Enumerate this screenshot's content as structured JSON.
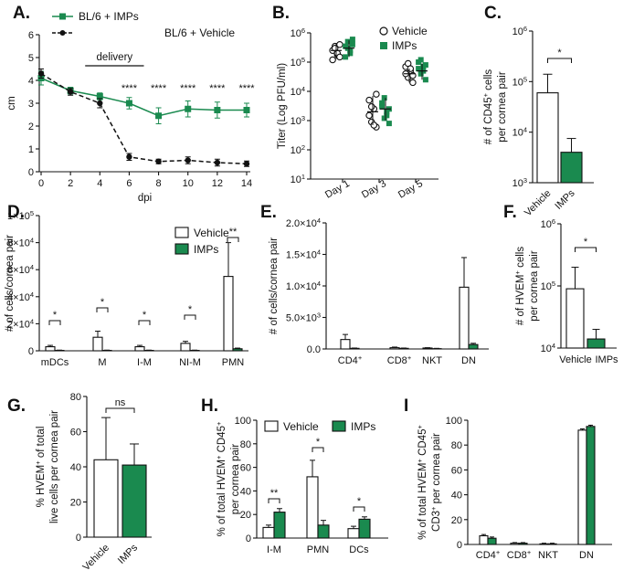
{
  "colors": {
    "green": "#1a8a4f",
    "white": "#ffffff",
    "black": "#111111"
  },
  "chart_data": [
    {
      "id": "A",
      "label": "A.",
      "type": "line",
      "xlabel": "dpi",
      "ylabel": "cm",
      "xlim": [
        0,
        14
      ],
      "ylim": [
        0,
        6
      ],
      "xticks": [
        0,
        2,
        4,
        6,
        8,
        10,
        12,
        14
      ],
      "yticks": [
        0,
        1,
        2,
        3,
        4,
        5,
        6
      ],
      "annotation": "delivery",
      "delivery_range": [
        3,
        7
      ],
      "series": [
        {
          "name": "BL/6 + IMPs",
          "x": [
            0,
            2,
            4,
            6,
            8,
            10,
            12,
            14
          ],
          "y": [
            4.1,
            3.55,
            3.3,
            3.0,
            2.45,
            2.75,
            2.7,
            2.7
          ],
          "err": [
            0.3,
            0.15,
            0.15,
            0.25,
            0.35,
            0.35,
            0.35,
            0.3
          ]
        },
        {
          "name": "BL/6 + Vehicle",
          "x": [
            0,
            2,
            4,
            6,
            8,
            10,
            12,
            14
          ],
          "y": [
            4.3,
            3.5,
            3.0,
            0.65,
            0.45,
            0.5,
            0.4,
            0.35
          ],
          "err": [
            0.2,
            0.15,
            0.2,
            0.15,
            0.1,
            0.15,
            0.15,
            0.12
          ]
        }
      ],
      "significance": [
        {
          "x": 6,
          "text": "****"
        },
        {
          "x": 8,
          "text": "****"
        },
        {
          "x": 10,
          "text": "****"
        },
        {
          "x": 12,
          "text": "****"
        },
        {
          "x": 14,
          "text": "****"
        }
      ]
    },
    {
      "id": "B",
      "label": "B.",
      "type": "scatter",
      "ylabel": "Titer (Log PFU/ml)",
      "yscale": "log",
      "ylim": [
        10,
        1000000
      ],
      "yticks": [
        "10^1",
        "10^2",
        "10^3",
        "10^4",
        "10^5",
        "10^6"
      ],
      "categories": [
        "Day 1",
        "Day 3",
        "Day 5"
      ],
      "series": [
        {
          "name": "Vehicle",
          "mean": [
            250000,
            2000,
            40000
          ],
          "err_lo": [
            130000,
            700,
            20000
          ],
          "err_hi": [
            450000,
            7000,
            60000
          ],
          "points": [
            [
              250000,
              350000,
              180000,
              400000,
              120000,
              300000,
              200000,
              150000
            ],
            [
              5000,
              900,
              2500,
              600,
              1500,
              3000,
              700,
              8000
            ],
            [
              70000,
              30000,
              50000,
              20000,
              40000,
              90000,
              60000,
              35000
            ]
          ]
        },
        {
          "name": "IMPs",
          "mean": [
            300000,
            2500,
            50000
          ],
          "err_lo": [
            150000,
            1000,
            25000
          ],
          "err_hi": [
            550000,
            6000,
            90000
          ],
          "points": [
            [
              350000,
              500000,
              200000,
              600000,
              150000,
              300000,
              250000,
              400000
            ],
            [
              4000,
              1200,
              2000,
              800,
              3000,
              6000,
              1500,
              2500
            ],
            [
              100000,
              40000,
              70000,
              25000,
              60000,
              120000,
              50000,
              80000
            ]
          ]
        }
      ]
    },
    {
      "id": "C",
      "label": "C.",
      "type": "bar",
      "yscale": "log",
      "ylim": [
        1000,
        1000000
      ],
      "ylabel": "# of CD45+ cells per cornea pair",
      "yticks": [
        "10^3",
        "10^4",
        "10^5",
        "10^6"
      ],
      "categories": [
        "Vehicle",
        "IMPs"
      ],
      "values": [
        60000,
        4000
      ],
      "err": [
        140000,
        7500
      ],
      "significance": "*"
    },
    {
      "id": "D",
      "label": "D.",
      "type": "bar",
      "ylabel": "# of cells/cornea pair",
      "ylim": [
        0,
        100000
      ],
      "yticks": [
        "0",
        "2×10^4",
        "4×10^4",
        "6×10^4",
        "8×10^4",
        "1×10^5"
      ],
      "categories": [
        "mDCs",
        "M",
        "I-M",
        "NI-M",
        "PMN"
      ],
      "series": [
        {
          "name": "Vehicle",
          "values": [
            3000,
            10000,
            3000,
            5500,
            55000
          ],
          "err": [
            4000,
            14500,
            4000,
            7000,
            80000
          ]
        },
        {
          "name": "IMPs",
          "values": [
            300,
            300,
            300,
            300,
            1500
          ],
          "err": [
            500,
            500,
            500,
            500,
            2000
          ]
        }
      ],
      "significance": [
        "*",
        "*",
        "*",
        "*",
        "**"
      ]
    },
    {
      "id": "E",
      "label": "E.",
      "type": "bar",
      "ylabel": "# of cells/cornea pair",
      "ylim": [
        0,
        20000
      ],
      "yticks": [
        "0.0",
        "5.0×10^3",
        "1.0×10^4",
        "1.5×10^4",
        "2.0×10^4"
      ],
      "categories": [
        "CD4+",
        "CD8+",
        "NKT",
        "DN"
      ],
      "series": [
        {
          "name": "Vehicle",
          "values": [
            1500,
            200,
            150,
            9800
          ],
          "err": [
            2300,
            300,
            200,
            14500
          ]
        },
        {
          "name": "IMPs",
          "values": [
            100,
            100,
            50,
            700
          ],
          "err": [
            150,
            150,
            100,
            900
          ]
        }
      ]
    },
    {
      "id": "F",
      "label": "F.",
      "type": "bar",
      "yscale": "log",
      "ylim": [
        10000,
        1000000
      ],
      "ylabel": "# of HVEM+ cells per cornea pair",
      "yticks": [
        "10^4",
        "10^5",
        "10^6"
      ],
      "categories": [
        "Vehicle",
        "IMPs"
      ],
      "values": [
        90000,
        14000
      ],
      "err": [
        200000,
        20000
      ],
      "significance": "*"
    },
    {
      "id": "G",
      "label": "G.",
      "type": "bar",
      "ylim": [
        0,
        80
      ],
      "ylabel": "% HVEM+ of total live cells per cornea pair",
      "yticks": [
        0,
        20,
        40,
        60,
        80
      ],
      "categories": [
        "Vehicle",
        "IMPs"
      ],
      "values": [
        44,
        41
      ],
      "err": [
        68,
        53
      ],
      "significance": "ns"
    },
    {
      "id": "H",
      "label": "H.",
      "type": "bar",
      "ylim": [
        0,
        100
      ],
      "ylabel": "% of total HVEM+ CD45+ per cornea pair",
      "yticks": [
        0,
        20,
        40,
        60,
        80,
        100
      ],
      "categories": [
        "I-M",
        "PMN",
        "DCs"
      ],
      "series": [
        {
          "name": "Vehicle",
          "values": [
            9,
            52,
            8
          ],
          "err": [
            11,
            66,
            10
          ]
        },
        {
          "name": "IMPs",
          "values": [
            22,
            11,
            16
          ],
          "err": [
            25,
            15,
            18
          ]
        }
      ],
      "significance": [
        "**",
        "*",
        "*"
      ]
    },
    {
      "id": "I",
      "label": "I",
      "type": "bar",
      "ylim": [
        0,
        100
      ],
      "ylabel": "% of total HVEM+ CD45+ CD3+ per cornea pair",
      "yticks": [
        0,
        20,
        40,
        60,
        80,
        100
      ],
      "categories": [
        "CD4+",
        "CD8+",
        "NKT",
        "DN"
      ],
      "series": [
        {
          "name": "Vehicle",
          "values": [
            7,
            1,
            0.5,
            92
          ],
          "err": [
            8,
            1.5,
            1,
            93
          ]
        },
        {
          "name": "IMPs",
          "values": [
            5,
            1,
            0.5,
            95
          ],
          "err": [
            6,
            1.5,
            1,
            96
          ]
        }
      ]
    }
  ]
}
